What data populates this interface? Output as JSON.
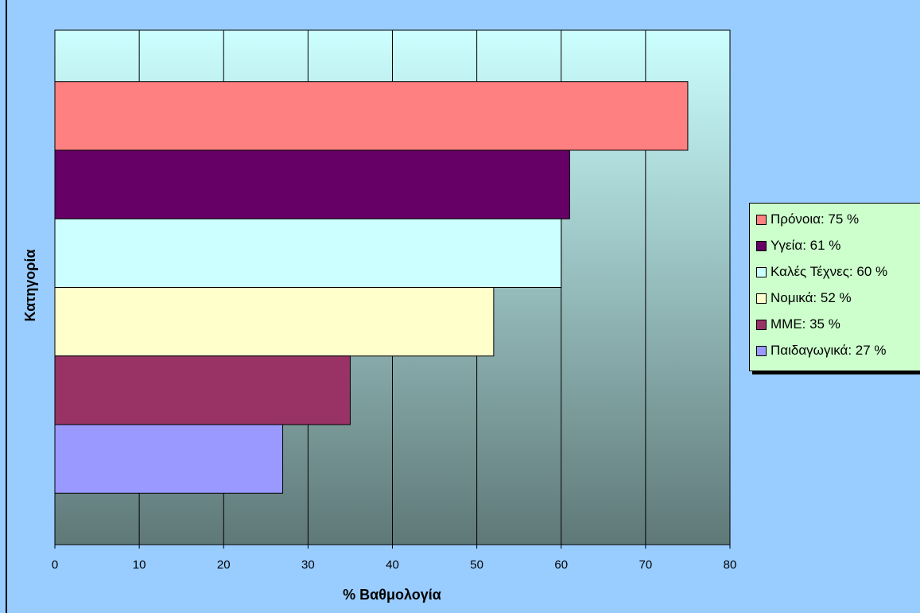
{
  "chart_data": {
    "type": "bar",
    "orientation": "horizontal",
    "categories": [
      "Πρόνοια",
      "Υγεία",
      "Καλές Τέχνες",
      "Νομικά",
      "ΜΜΕ",
      "Παιδαγωγικά"
    ],
    "values": [
      75,
      61,
      60,
      52,
      35,
      27
    ],
    "colors": [
      "#ff8080",
      "#660066",
      "#ccffff",
      "#ffffcc",
      "#993366",
      "#9999ff"
    ],
    "legend_labels": [
      "Πρόνοια: 75 %",
      "Υγεία: 61 %",
      "Καλές Τέχνες: 60 %",
      "Νομικά: 52 %",
      "ΜΜΕ: 35 %",
      "Παιδαγωγικά: 27 %"
    ],
    "xlabel": "% Βαθμολογία",
    "ylabel": "Κατηγορία",
    "xlim": [
      0,
      80
    ],
    "xticks": [
      "0",
      "10",
      "20",
      "30",
      "40",
      "50",
      "60",
      "70",
      "80"
    ],
    "grid": "vertical",
    "legend_position": "right",
    "plot_background": [
      "#ccffff",
      "#5f7878"
    ],
    "page_background": "#99ccff",
    "legend_background": "#ccffcc"
  }
}
